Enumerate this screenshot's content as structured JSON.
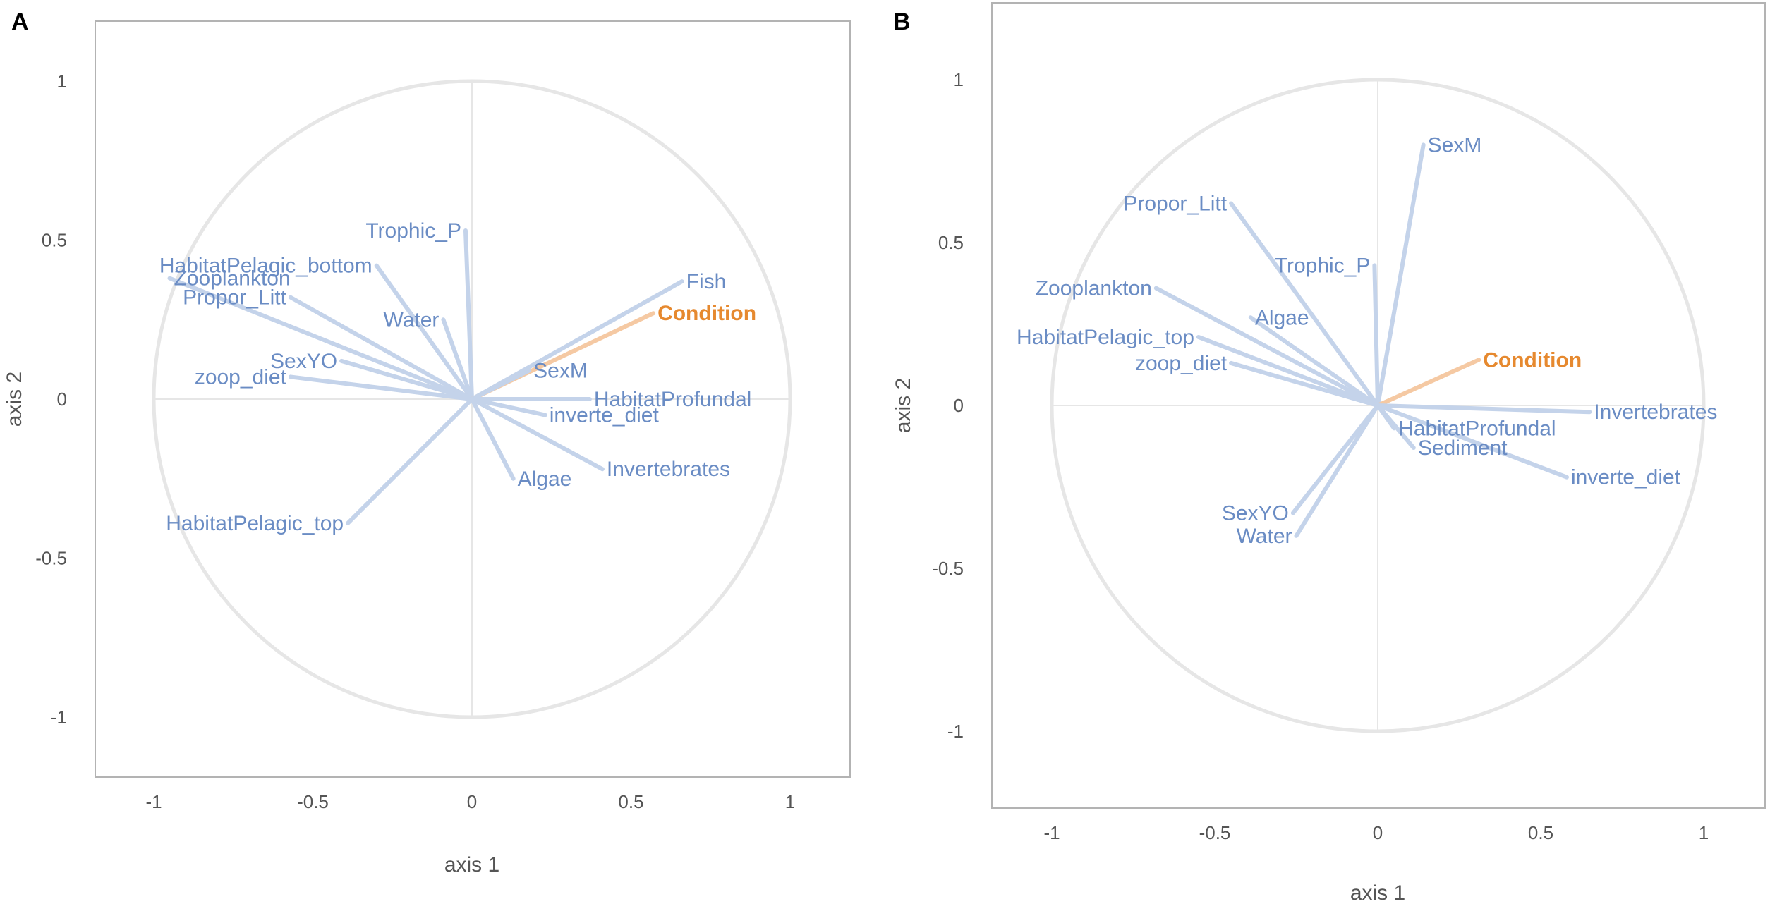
{
  "colors": {
    "variable": "#6a8cc4",
    "arrow": "#c4d3ea",
    "highlight": "#e6892f",
    "highlight_arrow": "#f5c9a3",
    "circle": "#e6e6e6",
    "frame": "#b3b3b3",
    "axis_text": "#555555"
  },
  "chart_data": [
    {
      "type": "correlation_circle",
      "panel": "A",
      "xlabel": "axis 1",
      "ylabel": "axis 2",
      "xlim": [
        -1.2,
        1.2
      ],
      "ylim": [
        -1.2,
        1.2
      ],
      "xticks": [
        "-1",
        "-0.5",
        "0",
        "0.5",
        "1"
      ],
      "yticks": [
        "-1",
        "-0.5",
        "0",
        "0.5",
        "1"
      ],
      "highlight": "Condition",
      "variables": [
        {
          "name": "Trophic_P",
          "x": -0.02,
          "y": 0.53,
          "label_pos": "left"
        },
        {
          "name": "HabitatPelagic_bottom",
          "x": -0.3,
          "y": 0.42,
          "label_pos": "left"
        },
        {
          "name": "Zooplankton",
          "x": -0.95,
          "y": 0.38,
          "label_pos": "right"
        },
        {
          "name": "Propor_Litt",
          "x": -0.57,
          "y": 0.32,
          "label_pos": "left"
        },
        {
          "name": "Water",
          "x": -0.09,
          "y": 0.25,
          "label_pos": "left"
        },
        {
          "name": "SexYO",
          "x": -0.41,
          "y": 0.12,
          "label_pos": "left"
        },
        {
          "name": "zoop_diet",
          "x": -0.57,
          "y": 0.07,
          "label_pos": "left"
        },
        {
          "name": "Fish",
          "x": 0.66,
          "y": 0.37,
          "label_pos": "right"
        },
        {
          "name": "Condition",
          "x": 0.57,
          "y": 0.27,
          "label_pos": "right"
        },
        {
          "name": "SexM",
          "x": 0.18,
          "y": 0.09,
          "label_pos": "right"
        },
        {
          "name": "HabitatProfundal",
          "x": 0.37,
          "y": 0.0,
          "label_pos": "right"
        },
        {
          "name": "inverte_diet",
          "x": 0.23,
          "y": -0.05,
          "label_pos": "right"
        },
        {
          "name": "Invertebrates",
          "x": 0.41,
          "y": -0.22,
          "label_pos": "right"
        },
        {
          "name": "Algae",
          "x": 0.13,
          "y": -0.25,
          "label_pos": "right"
        },
        {
          "name": "HabitatPelagic_top",
          "x": -0.39,
          "y": -0.39,
          "label_pos": "left"
        }
      ]
    },
    {
      "type": "correlation_circle",
      "panel": "B",
      "xlabel": "axis 1",
      "ylabel": "axis 2",
      "xlim": [
        -1.2,
        1.2
      ],
      "ylim": [
        -1.2,
        1.2
      ],
      "xticks": [
        "-1",
        "-0.5",
        "0",
        "0.5",
        "1"
      ],
      "yticks": [
        "-1",
        "-0.5",
        "0",
        "0.5",
        "1"
      ],
      "highlight": "Condition",
      "variables": [
        {
          "name": "SexM",
          "x": 0.14,
          "y": 0.8,
          "label_pos": "right"
        },
        {
          "name": "Propor_Litt",
          "x": -0.45,
          "y": 0.62,
          "label_pos": "left"
        },
        {
          "name": "Trophic_P",
          "x": -0.01,
          "y": 0.43,
          "label_pos": "left"
        },
        {
          "name": "Zooplankton",
          "x": -0.68,
          "y": 0.36,
          "label_pos": "left"
        },
        {
          "name": "Algae",
          "x": -0.39,
          "y": 0.27,
          "label_pos": "right"
        },
        {
          "name": "HabitatPelagic_top",
          "x": -0.55,
          "y": 0.21,
          "label_pos": "left"
        },
        {
          "name": "zoop_diet",
          "x": -0.45,
          "y": 0.13,
          "label_pos": "left"
        },
        {
          "name": "Condition",
          "x": 0.31,
          "y": 0.14,
          "label_pos": "right"
        },
        {
          "name": "Invertebrates",
          "x": 0.65,
          "y": -0.02,
          "label_pos": "right"
        },
        {
          "name": "HabitatProfundal",
          "x": 0.05,
          "y": -0.07,
          "label_pos": "right"
        },
        {
          "name": "Sediment",
          "x": 0.11,
          "y": -0.13,
          "label_pos": "right"
        },
        {
          "name": "inverte_diet",
          "x": 0.58,
          "y": -0.22,
          "label_pos": "right"
        },
        {
          "name": "SexYO",
          "x": -0.26,
          "y": -0.33,
          "label_pos": "left"
        },
        {
          "name": "Water",
          "x": -0.25,
          "y": -0.4,
          "label_pos": "left"
        }
      ]
    }
  ]
}
